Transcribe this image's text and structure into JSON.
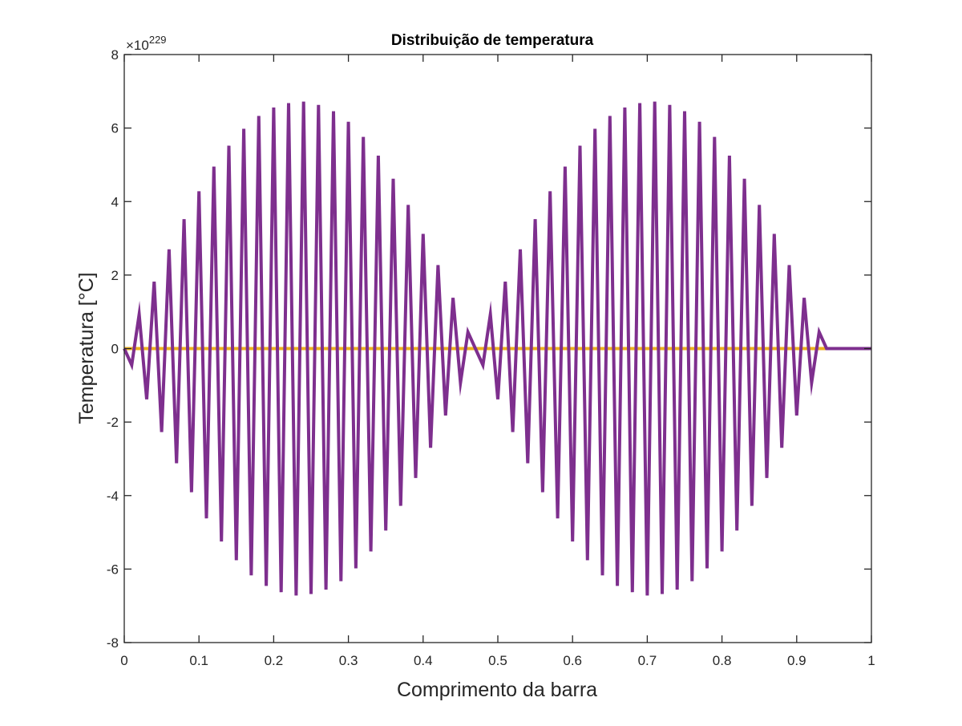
{
  "chart_data": {
    "type": "line",
    "title": "Distribuição de temperatura",
    "xlabel": "Comprimento da barra",
    "ylabel": "Temperatura [°C]",
    "y_exponent_base": "×10",
    "y_exponent_power": "229",
    "xlim": [
      0,
      1
    ],
    "ylim": [
      -8,
      8
    ],
    "xticks": [
      0,
      0.1,
      0.2,
      0.3,
      0.4,
      0.5,
      0.6,
      0.7,
      0.8,
      0.9,
      1
    ],
    "xtick_labels": [
      "0",
      "0.1",
      "0.2",
      "0.3",
      "0.4",
      "0.5",
      "0.6",
      "0.7",
      "0.8",
      "0.9",
      "1"
    ],
    "yticks": [
      -8,
      -6,
      -4,
      -2,
      0,
      2,
      4,
      6,
      8
    ],
    "ytick_labels": [
      "-8",
      "-6",
      "-4",
      "-2",
      "0",
      "2",
      "4",
      "6",
      "8"
    ],
    "grid": false,
    "series": [
      {
        "color": "#EDB120",
        "x": [
          0,
          1
        ],
        "y": [
          0,
          0
        ]
      },
      {
        "color": "#7E2F8E",
        "x": [
          0,
          0.01,
          0.02,
          0.03,
          0.04,
          0.05,
          0.06,
          0.07,
          0.08,
          0.09,
          0.1,
          0.11,
          0.12,
          0.13,
          0.14,
          0.15,
          0.16,
          0.17,
          0.18,
          0.19,
          0.2,
          0.21,
          0.22,
          0.23,
          0.24,
          0.25,
          0.26,
          0.27,
          0.28,
          0.29,
          0.3,
          0.31,
          0.32,
          0.33,
          0.34,
          0.35,
          0.36,
          0.37,
          0.38,
          0.39,
          0.4,
          0.41,
          0.42,
          0.43,
          0.44,
          0.45,
          0.46,
          0.47,
          0.48,
          0.49,
          0.5,
          0.51,
          0.52,
          0.53,
          0.54,
          0.55,
          0.56,
          0.57,
          0.58,
          0.59,
          0.6,
          0.61,
          0.62,
          0.63,
          0.64,
          0.65,
          0.66,
          0.67,
          0.68,
          0.69,
          0.7,
          0.71,
          0.72,
          0.73,
          0.74,
          0.75,
          0.76,
          0.77,
          0.78,
          0.79,
          0.8,
          0.81,
          0.82,
          0.83,
          0.84,
          0.85,
          0.86,
          0.87,
          0.88,
          0.89,
          0.9,
          0.91,
          0.92,
          0.93,
          0.94,
          0.95,
          0.96,
          0.97,
          0.98,
          0.99,
          1
        ],
        "y": [
          0,
          -0.45,
          0.93,
          -1.38,
          1.82,
          -2.27,
          2.7,
          -3.12,
          3.52,
          -3.91,
          4.28,
          -4.62,
          4.95,
          -5.25,
          5.52,
          -5.76,
          5.98,
          -6.17,
          6.33,
          -6.46,
          6.56,
          -6.63,
          6.68,
          -6.72,
          6.72,
          -6.68,
          6.63,
          -6.56,
          6.46,
          -6.33,
          6.17,
          -5.98,
          5.76,
          -5.52,
          5.25,
          -4.95,
          4.62,
          -4.28,
          3.91,
          -3.52,
          3.12,
          -2.7,
          2.27,
          -1.82,
          1.38,
          -0.93,
          0.45,
          0,
          -0.45,
          0.93,
          -1.38,
          1.82,
          -2.27,
          2.7,
          -3.12,
          3.52,
          -3.91,
          4.28,
          -4.62,
          4.95,
          -5.25,
          5.52,
          -5.76,
          5.98,
          -6.17,
          6.33,
          -6.46,
          6.56,
          -6.63,
          6.68,
          -6.72,
          6.72,
          -6.68,
          6.63,
          -6.56,
          6.46,
          -6.33,
          6.17,
          -5.98,
          5.76,
          -5.52,
          5.25,
          -4.95,
          4.62,
          -4.28,
          3.91,
          -3.52,
          3.12,
          -2.7,
          2.27,
          -1.82,
          1.38,
          -0.93,
          0.45,
          0,
          0,
          0,
          0,
          0,
          0,
          0
        ]
      }
    ]
  }
}
